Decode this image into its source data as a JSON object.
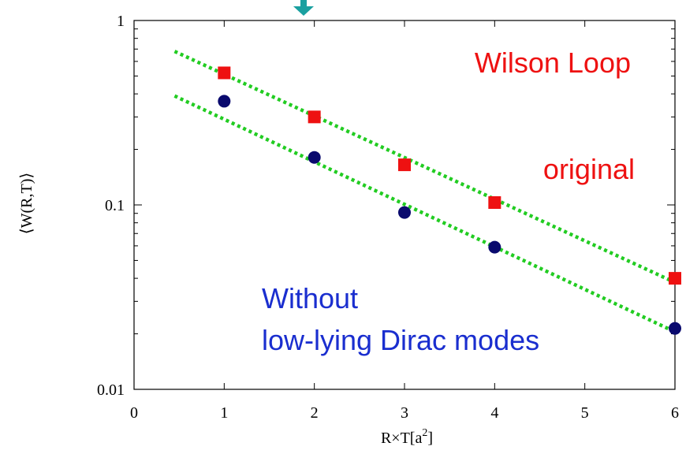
{
  "chart_data": {
    "type": "scatter",
    "xlabel": "R×T[a",
    "xlabel_sup": "2",
    "xlabel_close": "]",
    "ylabel": "⟨W(R,T)⟩",
    "xlim": [
      0,
      6
    ],
    "ylim": [
      0.01,
      1
    ],
    "yscale": "log",
    "x_ticks": [
      0,
      1,
      2,
      3,
      4,
      5,
      6
    ],
    "y_ticks": [
      0.01,
      0.1,
      1
    ],
    "y_tick_labels": [
      "0.01",
      "0.1",
      "1"
    ],
    "grid": false,
    "series": [
      {
        "marker": "square",
        "color": "#ee1111",
        "x": [
          1,
          2,
          3,
          4,
          6
        ],
        "y": [
          0.52,
          0.3,
          0.165,
          0.103,
          0.04
        ]
      },
      {
        "marker": "circle",
        "color": "#0a0a6e",
        "x": [
          1,
          2,
          3,
          4,
          6
        ],
        "y": [
          0.365,
          0.181,
          0.091,
          0.059,
          0.0214
        ]
      }
    ],
    "fit_lines": [
      {
        "color": "#22cc22",
        "style": "dotted",
        "x": [
          0.45,
          6
        ],
        "y": [
          0.68,
          0.038
        ]
      },
      {
        "color": "#22cc22",
        "style": "dotted",
        "x": [
          0.45,
          6
        ],
        "y": [
          0.39,
          0.0205
        ]
      }
    ],
    "annotations": [
      {
        "text": "Wilson Loop",
        "color": "#ee1111"
      },
      {
        "text": "original",
        "color": "#ee1111"
      },
      {
        "text": "Without",
        "color": "#1a2ecf"
      },
      {
        "text": "low-lying Dirac modes",
        "color": "#1a2ecf"
      }
    ],
    "arrow_color": "#1aa0a0"
  }
}
